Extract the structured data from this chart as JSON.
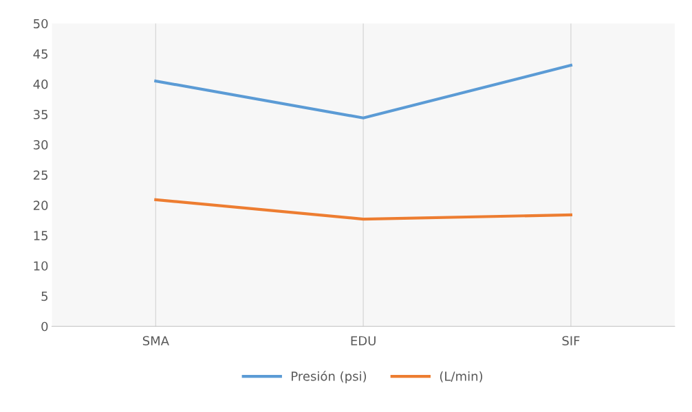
{
  "chart_data": {
    "type": "line",
    "categories": [
      "SMA",
      "EDU",
      "SIF"
    ],
    "series": [
      {
        "name": "Presión (psi)",
        "color": "#5b9bd5",
        "values": [
          40.5,
          34.4,
          43.1
        ]
      },
      {
        "name": "(L/min)",
        "color": "#ed7d31",
        "values": [
          20.9,
          17.7,
          18.4
        ]
      }
    ],
    "ylim": [
      0,
      50
    ],
    "yticks": [
      0,
      5,
      10,
      15,
      20,
      25,
      30,
      35,
      40,
      45,
      50
    ],
    "grid": "x",
    "legend": "bottom",
    "marker": "none",
    "line_style": "solid"
  }
}
